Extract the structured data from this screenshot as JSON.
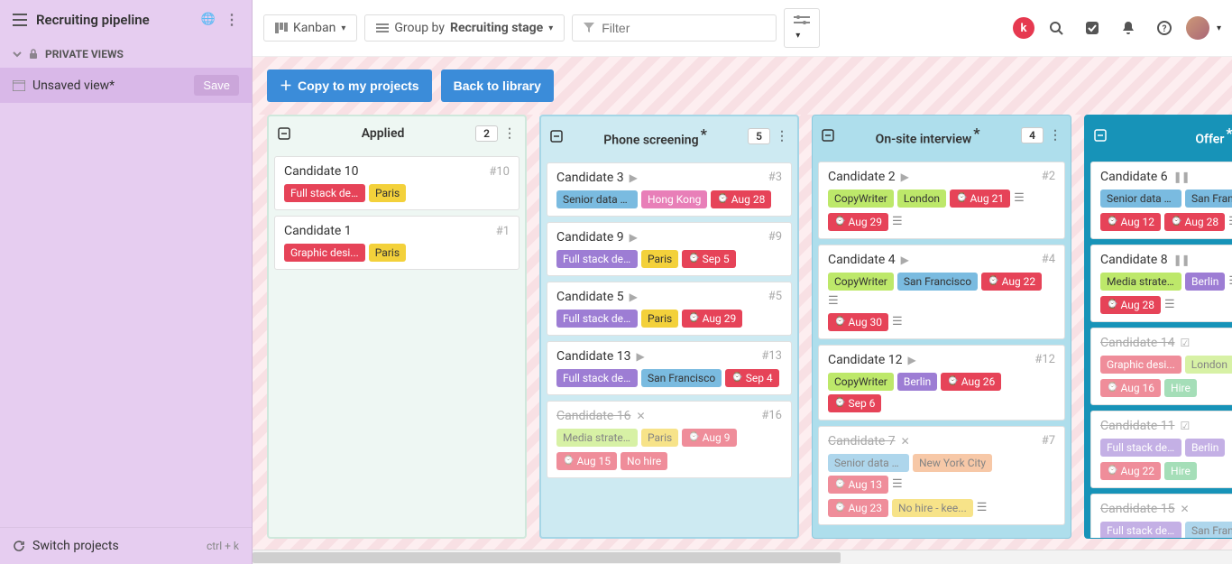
{
  "sidebar": {
    "title": "Recruiting pipeline",
    "private_views_label": "PRIVATE VIEWS",
    "view_label": "Unsaved view*",
    "save_label": "Save",
    "switch_label": "Switch projects",
    "shortcut": "ctrl + k"
  },
  "topbar": {
    "kanban": "Kanban",
    "groupby_prefix": "Group by ",
    "groupby_value": "Recruiting stage",
    "filter_placeholder": "Filter",
    "copy_btn": "Copy to my projects",
    "back_btn": "Back to library",
    "brand_letter": "k"
  },
  "columns": [
    {
      "key": "applied",
      "title": "Applied",
      "count": "2",
      "asterisk": false,
      "class": "col-applied",
      "cards": [
        {
          "title": "Candidate 10",
          "id": "#10",
          "completed": false,
          "status": "none",
          "tags": [
            {
              "text": "Full stack de...",
              "cls": "tag-red"
            },
            {
              "text": "Paris",
              "cls": "tag-yellow"
            }
          ]
        },
        {
          "title": "Candidate 1",
          "id": "#1",
          "completed": false,
          "status": "none",
          "tags": [
            {
              "text": "Graphic desi...",
              "cls": "tag-red"
            },
            {
              "text": "Paris",
              "cls": "tag-yellow"
            }
          ]
        }
      ]
    },
    {
      "key": "phone",
      "title": "Phone screening",
      "count": "5",
      "asterisk": true,
      "class": "col-phone",
      "cards": [
        {
          "title": "Candidate 3",
          "id": "#3",
          "completed": false,
          "status": "play",
          "tags": [
            {
              "text": "Senior data s...",
              "cls": "tag-blue"
            },
            {
              "text": "Hong Kong",
              "cls": "tag-pink"
            },
            {
              "text": "Aug 28",
              "cls": "tag-date"
            }
          ]
        },
        {
          "title": "Candidate 9",
          "id": "#9",
          "completed": false,
          "status": "play",
          "tags": [
            {
              "text": "Full stack de...",
              "cls": "tag-purple"
            },
            {
              "text": "Paris",
              "cls": "tag-yellow"
            },
            {
              "text": "Sep 5",
              "cls": "tag-date"
            }
          ]
        },
        {
          "title": "Candidate 5",
          "id": "#5",
          "completed": false,
          "status": "play",
          "tags": [
            {
              "text": "Full stack de...",
              "cls": "tag-purple"
            },
            {
              "text": "Paris",
              "cls": "tag-yellow"
            },
            {
              "text": "Aug 29",
              "cls": "tag-date"
            }
          ]
        },
        {
          "title": "Candidate 13",
          "id": "#13",
          "completed": false,
          "status": "play",
          "tags": [
            {
              "text": "Full stack de...",
              "cls": "tag-purple"
            },
            {
              "text": "San Francisco",
              "cls": "tag-blue"
            },
            {
              "text": "Sep 4",
              "cls": "tag-date"
            }
          ]
        },
        {
          "title": "Candidate 16",
          "id": "#16",
          "completed": true,
          "status": "x",
          "tags": [
            {
              "text": "Media strate...",
              "cls": "tag-lime"
            },
            {
              "text": "Paris",
              "cls": "tag-yellow"
            },
            {
              "text": "Aug 9",
              "cls": "tag-date"
            }
          ],
          "tags2": [
            {
              "text": "Aug 15",
              "cls": "tag-date"
            },
            {
              "text": "No hire",
              "cls": "tag-red"
            }
          ]
        }
      ]
    },
    {
      "key": "onsite",
      "title": "On-site interview",
      "count": "4",
      "asterisk": true,
      "class": "col-onsite",
      "cards": [
        {
          "title": "Candidate 2",
          "id": "#2",
          "completed": false,
          "status": "play",
          "tags": [
            {
              "text": "CopyWriter",
              "cls": "tag-lime"
            },
            {
              "text": "London",
              "cls": "tag-lime"
            },
            {
              "text": "Aug 21",
              "cls": "tag-date"
            }
          ],
          "tags2": [
            {
              "text": "Aug 29",
              "cls": "tag-date"
            }
          ],
          "extra": true
        },
        {
          "title": "Candidate 4",
          "id": "#4",
          "completed": false,
          "status": "play",
          "tags": [
            {
              "text": "CopyWriter",
              "cls": "tag-lime"
            },
            {
              "text": "San Francisco",
              "cls": "tag-blue"
            },
            {
              "text": "Aug 22",
              "cls": "tag-date"
            }
          ],
          "tags2": [
            {
              "text": "Aug 30",
              "cls": "tag-date"
            }
          ],
          "extra": true
        },
        {
          "title": "Candidate 12",
          "id": "#12",
          "completed": false,
          "status": "play",
          "tags": [
            {
              "text": "CopyWriter",
              "cls": "tag-lime"
            },
            {
              "text": "Berlin",
              "cls": "tag-purple"
            },
            {
              "text": "Aug 26",
              "cls": "tag-date"
            },
            {
              "text": "Sep 6",
              "cls": "tag-date"
            }
          ]
        },
        {
          "title": "Candidate 7",
          "id": "#7",
          "completed": true,
          "status": "x",
          "tags": [
            {
              "text": "Senior data s...",
              "cls": "tag-blue"
            },
            {
              "text": "New York City",
              "cls": "tag-orange"
            },
            {
              "text": "Aug 13",
              "cls": "tag-date"
            }
          ],
          "tags2": [
            {
              "text": "Aug 23",
              "cls": "tag-date"
            },
            {
              "text": "No hire - kee...",
              "cls": "tag-yellow"
            }
          ],
          "extra": true
        }
      ]
    },
    {
      "key": "offer",
      "title": "Offer",
      "count": "",
      "asterisk": true,
      "class": "col-offer",
      "cards": [
        {
          "title": "Candidate 6",
          "id": "",
          "completed": false,
          "status": "pause",
          "tags": [
            {
              "text": "Senior data s...",
              "cls": "tag-blue"
            },
            {
              "text": "San Fran",
              "cls": "tag-blue"
            }
          ],
          "tags2": [
            {
              "text": "Aug 12",
              "cls": "tag-date"
            },
            {
              "text": "Aug 28",
              "cls": "tag-date"
            }
          ],
          "extra": true
        },
        {
          "title": "Candidate 8",
          "id": "",
          "completed": false,
          "status": "pause",
          "tags": [
            {
              "text": "Media strate...",
              "cls": "tag-lime"
            },
            {
              "text": "Berlin",
              "cls": "tag-purple"
            }
          ],
          "tags2": [
            {
              "text": "Aug 28",
              "cls": "tag-date"
            }
          ],
          "extra": true
        },
        {
          "title": "Candidate 14",
          "id": "",
          "completed": true,
          "status": "check",
          "tags": [
            {
              "text": "Graphic desi...",
              "cls": "tag-red"
            },
            {
              "text": "London",
              "cls": "tag-lime"
            }
          ],
          "tags2": [
            {
              "text": "Aug 16",
              "cls": "tag-date"
            },
            {
              "text": "Hire",
              "cls": "tag-green"
            }
          ]
        },
        {
          "title": "Candidate 11",
          "id": "",
          "completed": true,
          "status": "check",
          "tags": [
            {
              "text": "Full stack de...",
              "cls": "tag-purple"
            },
            {
              "text": "Berlin",
              "cls": "tag-purple"
            }
          ],
          "tags2": [
            {
              "text": "Aug 22",
              "cls": "tag-date"
            },
            {
              "text": "Hire",
              "cls": "tag-green"
            }
          ]
        },
        {
          "title": "Candidate 15",
          "id": "",
          "completed": true,
          "status": "x",
          "tags": [
            {
              "text": "Full stack de...",
              "cls": "tag-purple"
            },
            {
              "text": "San Fran",
              "cls": "tag-blue"
            }
          ]
        }
      ]
    }
  ]
}
